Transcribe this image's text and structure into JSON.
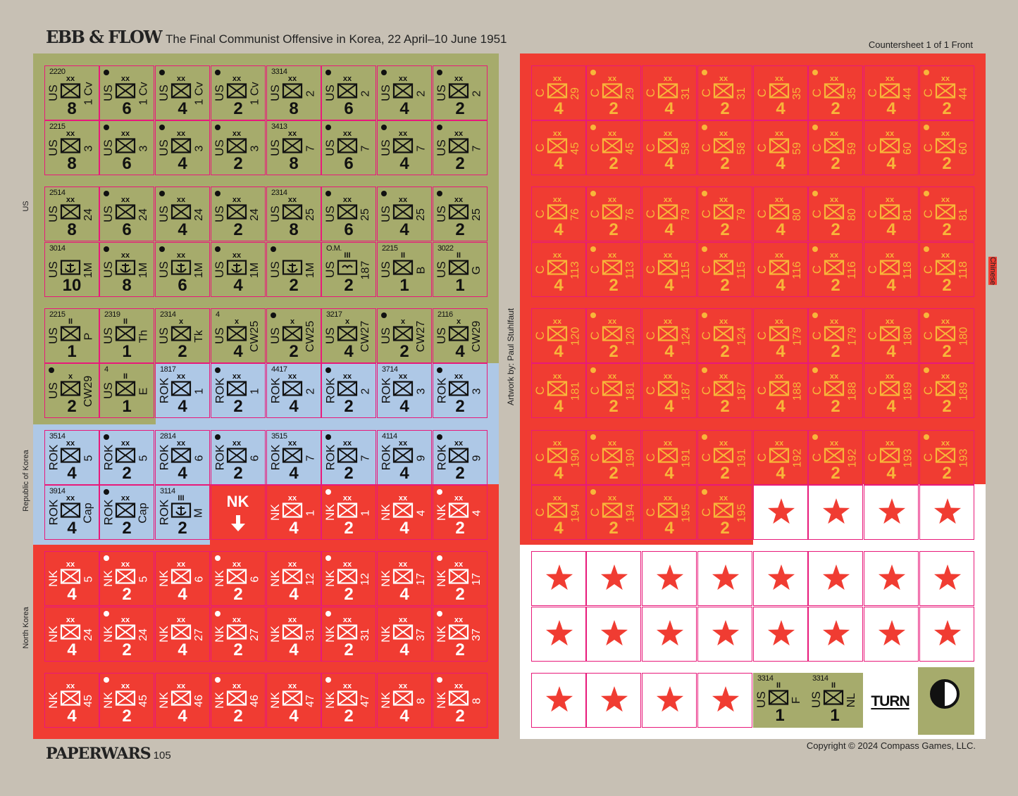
{
  "header": {
    "game_title": "EBB & FLOW",
    "subtitle": "The Final Communist Offensive in Korea, 22 April–10 June 1951",
    "countersheet": "Countersheet 1 of 1 Front"
  },
  "footer": {
    "magazine": "PAPERWARS",
    "issue": "105",
    "copyright": "Copyright © 2024 Compass Games, LLC."
  },
  "side_labels": {
    "us": "US",
    "rok": "Republic of Korea",
    "nk": "North Korea",
    "chinese": "Chinese",
    "artwork": "Artwork by: Paul Stuhlfaut"
  },
  "colors": {
    "us": "#a6ab6c",
    "rok": "#aec8e6",
    "red": "#f03c32",
    "chinese_text": "#f8b63a",
    "border": "#e8197a"
  },
  "left_rows": [
    [
      {
        "n": "US",
        "s": "xx",
        "d": "1 Cv",
        "p": "8",
        "code": "2220",
        "t": "inf"
      },
      {
        "n": "US",
        "s": "xx",
        "d": "1 Cv",
        "p": "6",
        "dot": true,
        "t": "inf"
      },
      {
        "n": "US",
        "s": "xx",
        "d": "1 Cv",
        "p": "4",
        "dot": true,
        "t": "inf"
      },
      {
        "n": "US",
        "s": "xx",
        "d": "1 Cv",
        "p": "2",
        "dot": true,
        "t": "inf"
      },
      {
        "n": "US",
        "s": "xx",
        "d": "2",
        "p": "8",
        "code": "3314",
        "t": "inf"
      },
      {
        "n": "US",
        "s": "xx",
        "d": "2",
        "p": "6",
        "dot": true,
        "t": "inf"
      },
      {
        "n": "US",
        "s": "xx",
        "d": "2",
        "p": "4",
        "dot": true,
        "t": "inf"
      },
      {
        "n": "US",
        "s": "xx",
        "d": "2",
        "p": "2",
        "dot": true,
        "t": "inf"
      }
    ],
    [
      {
        "n": "US",
        "s": "xx",
        "d": "3",
        "p": "8",
        "code": "2215",
        "t": "inf"
      },
      {
        "n": "US",
        "s": "xx",
        "d": "3",
        "p": "6",
        "dot": true,
        "t": "inf"
      },
      {
        "n": "US",
        "s": "xx",
        "d": "3",
        "p": "4",
        "dot": true,
        "t": "inf"
      },
      {
        "n": "US",
        "s": "xx",
        "d": "3",
        "p": "2",
        "dot": true,
        "t": "inf"
      },
      {
        "n": "US",
        "s": "xx",
        "d": "7",
        "p": "8",
        "code": "3413",
        "t": "inf"
      },
      {
        "n": "US",
        "s": "xx",
        "d": "7",
        "p": "6",
        "dot": true,
        "t": "inf"
      },
      {
        "n": "US",
        "s": "xx",
        "d": "7",
        "p": "4",
        "dot": true,
        "t": "inf"
      },
      {
        "n": "US",
        "s": "xx",
        "d": "7",
        "p": "2",
        "dot": true,
        "t": "inf"
      }
    ],
    [
      {
        "n": "US",
        "s": "xx",
        "d": "24",
        "p": "8",
        "code": "2514",
        "t": "inf"
      },
      {
        "n": "US",
        "s": "xx",
        "d": "24",
        "p": "6",
        "dot": true,
        "t": "inf"
      },
      {
        "n": "US",
        "s": "xx",
        "d": "24",
        "p": "4",
        "dot": true,
        "t": "inf"
      },
      {
        "n": "US",
        "s": "xx",
        "d": "24",
        "p": "2",
        "dot": true,
        "t": "inf"
      },
      {
        "n": "US",
        "s": "xx",
        "d": "25",
        "p": "8",
        "code": "2314",
        "t": "inf"
      },
      {
        "n": "US",
        "s": "xx",
        "d": "25",
        "p": "6",
        "dot": true,
        "t": "inf"
      },
      {
        "n": "US",
        "s": "xx",
        "d": "25",
        "p": "4",
        "dot": true,
        "t": "inf"
      },
      {
        "n": "US",
        "s": "xx",
        "d": "25",
        "p": "2",
        "dot": true,
        "t": "inf"
      }
    ],
    [
      {
        "n": "US",
        "s": "",
        "d": "1M",
        "p": "10",
        "code": "3014",
        "t": "mar"
      },
      {
        "n": "US",
        "s": "xx",
        "d": "1M",
        "p": "8",
        "dot": true,
        "t": "mar"
      },
      {
        "n": "US",
        "s": "xx",
        "d": "1M",
        "p": "6",
        "dot": true,
        "t": "mar"
      },
      {
        "n": "US",
        "s": "xx",
        "d": "1M",
        "p": "4",
        "dot": true,
        "t": "mar"
      },
      {
        "n": "US",
        "s": "",
        "d": "1M",
        "p": "2",
        "dot": true,
        "t": "mar"
      },
      {
        "n": "US",
        "s": "III",
        "d": "187",
        "p": "2",
        "code": "O.M.",
        "t": "abn"
      },
      {
        "n": "US",
        "s": "II",
        "d": "B",
        "p": "1",
        "code": "2215",
        "t": "inf"
      },
      {
        "n": "US",
        "s": "II",
        "d": "G",
        "p": "1",
        "code": "3022",
        "t": "inf"
      }
    ],
    [
      {
        "n": "US",
        "s": "II",
        "d": "P",
        "p": "1",
        "code": "2215",
        "t": "inf"
      },
      {
        "n": "US",
        "s": "II",
        "d": "Th",
        "p": "1",
        "code": "2319",
        "t": "inf"
      },
      {
        "n": "US",
        "s": "x",
        "d": "Tk",
        "p": "2",
        "code": "2314",
        "t": "inf"
      },
      {
        "n": "US",
        "s": "x",
        "d": "CW25",
        "p": "4",
        "code": "4",
        "t": "inf"
      },
      {
        "n": "US",
        "s": "x",
        "d": "CW25",
        "p": "2",
        "dot": true,
        "t": "inf"
      },
      {
        "n": "US",
        "s": "x",
        "d": "CW27",
        "p": "4",
        "code": "3217",
        "t": "inf"
      },
      {
        "n": "US",
        "s": "x",
        "d": "CW27",
        "p": "2",
        "dot": true,
        "t": "inf"
      },
      {
        "n": "US",
        "s": "x",
        "d": "CW29",
        "p": "4",
        "code": "2116",
        "t": "inf"
      }
    ],
    [
      {
        "n": "US",
        "s": "x",
        "d": "CW29",
        "p": "2",
        "dot": true,
        "t": "inf"
      },
      {
        "n": "US",
        "s": "II",
        "d": "E",
        "p": "1",
        "code": "4",
        "t": "inf"
      },
      {
        "n": "ROK",
        "s": "xx",
        "d": "1",
        "p": "4",
        "code": "1817",
        "t": "inf",
        "c": "b"
      },
      {
        "n": "ROK",
        "s": "xx",
        "d": "1",
        "p": "2",
        "dot": true,
        "t": "inf",
        "c": "b"
      },
      {
        "n": "ROK",
        "s": "xx",
        "d": "2",
        "p": "4",
        "code": "4417",
        "t": "inf",
        "c": "b"
      },
      {
        "n": "ROK",
        "s": "xx",
        "d": "2",
        "p": "2",
        "dot": true,
        "t": "inf",
        "c": "b"
      },
      {
        "n": "ROK",
        "s": "xx",
        "d": "3",
        "p": "4",
        "code": "3714",
        "t": "inf",
        "c": "b"
      },
      {
        "n": "ROK",
        "s": "xx",
        "d": "3",
        "p": "2",
        "dot": true,
        "t": "inf",
        "c": "b"
      }
    ],
    [
      {
        "n": "ROK",
        "s": "xx",
        "d": "5",
        "p": "4",
        "code": "3514",
        "t": "inf",
        "c": "b"
      },
      {
        "n": "ROK",
        "s": "xx",
        "d": "5",
        "p": "2",
        "dot": true,
        "t": "inf",
        "c": "b"
      },
      {
        "n": "ROK",
        "s": "xx",
        "d": "6",
        "p": "4",
        "code": "2814",
        "t": "inf",
        "c": "b"
      },
      {
        "n": "ROK",
        "s": "xx",
        "d": "6",
        "p": "2",
        "dot": true,
        "t": "inf",
        "c": "b"
      },
      {
        "n": "ROK",
        "s": "xx",
        "d": "7",
        "p": "4",
        "code": "3515",
        "t": "inf",
        "c": "b"
      },
      {
        "n": "ROK",
        "s": "xx",
        "d": "7",
        "p": "2",
        "dot": true,
        "t": "inf",
        "c": "b"
      },
      {
        "n": "ROK",
        "s": "xx",
        "d": "9",
        "p": "4",
        "code": "4114",
        "t": "inf",
        "c": "b"
      },
      {
        "n": "ROK",
        "s": "xx",
        "d": "9",
        "p": "2",
        "dot": true,
        "t": "inf",
        "c": "b"
      }
    ],
    [
      {
        "n": "ROK",
        "s": "xx",
        "d": "Cap",
        "p": "4",
        "code": "3914",
        "t": "inf",
        "c": "b"
      },
      {
        "n": "ROK",
        "s": "xx",
        "d": "Cap",
        "p": "2",
        "dot": true,
        "t": "inf",
        "c": "b"
      },
      {
        "n": "ROK",
        "s": "III",
        "d": "M",
        "p": "2",
        "code": "3114",
        "t": "mar",
        "c": "b"
      },
      {
        "special": "nk",
        "label": "NK",
        "c": "r"
      },
      {
        "n": "NK",
        "s": "xx",
        "d": "1",
        "p": "4",
        "t": "inf",
        "c": "r"
      },
      {
        "n": "NK",
        "s": "xx",
        "d": "1",
        "p": "2",
        "dot": true,
        "t": "inf",
        "c": "r"
      },
      {
        "n": "NK",
        "s": "xx",
        "d": "4",
        "p": "4",
        "t": "inf",
        "c": "r"
      },
      {
        "n": "NK",
        "s": "xx",
        "d": "4",
        "p": "2",
        "dot": true,
        "t": "inf",
        "c": "r"
      }
    ],
    [
      {
        "n": "NK",
        "s": "xx",
        "d": "5",
        "p": "4",
        "t": "inf",
        "c": "r"
      },
      {
        "n": "NK",
        "s": "xx",
        "d": "5",
        "p": "2",
        "dot": true,
        "t": "inf",
        "c": "r"
      },
      {
        "n": "NK",
        "s": "xx",
        "d": "6",
        "p": "4",
        "t": "inf",
        "c": "r"
      },
      {
        "n": "NK",
        "s": "xx",
        "d": "6",
        "p": "2",
        "dot": true,
        "t": "inf",
        "c": "r"
      },
      {
        "n": "NK",
        "s": "xx",
        "d": "12",
        "p": "4",
        "t": "inf",
        "c": "r"
      },
      {
        "n": "NK",
        "s": "xx",
        "d": "12",
        "p": "2",
        "dot": true,
        "t": "inf",
        "c": "r"
      },
      {
        "n": "NK",
        "s": "xx",
        "d": "17",
        "p": "4",
        "t": "inf",
        "c": "r"
      },
      {
        "n": "NK",
        "s": "xx",
        "d": "17",
        "p": "2",
        "dot": true,
        "t": "inf",
        "c": "r"
      }
    ],
    [
      {
        "n": "NK",
        "s": "xx",
        "d": "24",
        "p": "4",
        "t": "inf",
        "c": "r"
      },
      {
        "n": "NK",
        "s": "xx",
        "d": "24",
        "p": "2",
        "dot": true,
        "t": "inf",
        "c": "r"
      },
      {
        "n": "NK",
        "s": "xx",
        "d": "27",
        "p": "4",
        "t": "inf",
        "c": "r"
      },
      {
        "n": "NK",
        "s": "xx",
        "d": "27",
        "p": "2",
        "dot": true,
        "t": "inf",
        "c": "r"
      },
      {
        "n": "NK",
        "s": "xx",
        "d": "31",
        "p": "4",
        "t": "inf",
        "c": "r"
      },
      {
        "n": "NK",
        "s": "xx",
        "d": "31",
        "p": "2",
        "dot": true,
        "t": "inf",
        "c": "r"
      },
      {
        "n": "NK",
        "s": "xx",
        "d": "37",
        "p": "4",
        "t": "inf",
        "c": "r"
      },
      {
        "n": "NK",
        "s": "xx",
        "d": "37",
        "p": "2",
        "dot": true,
        "t": "inf",
        "c": "r"
      }
    ],
    [
      {
        "n": "NK",
        "s": "xx",
        "d": "45",
        "p": "4",
        "t": "inf",
        "c": "r"
      },
      {
        "n": "NK",
        "s": "xx",
        "d": "45",
        "p": "2",
        "dot": true,
        "t": "inf",
        "c": "r"
      },
      {
        "n": "NK",
        "s": "xx",
        "d": "46",
        "p": "4",
        "t": "inf",
        "c": "r"
      },
      {
        "n": "NK",
        "s": "xx",
        "d": "46",
        "p": "2",
        "dot": true,
        "t": "inf",
        "c": "r"
      },
      {
        "n": "NK",
        "s": "xx",
        "d": "47",
        "p": "4",
        "t": "inf",
        "c": "r"
      },
      {
        "n": "NK",
        "s": "xx",
        "d": "47",
        "p": "2",
        "dot": true,
        "t": "inf",
        "c": "r"
      },
      {
        "n": "NK",
        "s": "xx",
        "d": "8",
        "p": "4",
        "t": "inf",
        "c": "r"
      },
      {
        "n": "NK",
        "s": "xx",
        "d": "8",
        "p": "2",
        "dot": true,
        "t": "inf",
        "c": "r"
      }
    ]
  ],
  "right_rows": [
    [
      "29",
      "29",
      "31",
      "31",
      "35",
      "35",
      "44",
      "44"
    ],
    [
      "45",
      "45",
      "58",
      "58",
      "59",
      "59",
      "60",
      "60"
    ],
    [
      "76",
      "76",
      "79",
      "79",
      "80",
      "80",
      "81",
      "81"
    ],
    [
      "113",
      "113",
      "115",
      "115",
      "116",
      "116",
      "118",
      "118"
    ],
    [
      "120",
      "120",
      "124",
      "124",
      "179",
      "179",
      "180",
      "180"
    ],
    [
      "181",
      "181",
      "187",
      "187",
      "188",
      "188",
      "189",
      "189"
    ],
    [
      "190",
      "190",
      "191",
      "191",
      "192",
      "192",
      "193",
      "193"
    ],
    [
      "194",
      "194",
      "195",
      "195"
    ]
  ],
  "chinese_nation": "C",
  "chinese_size": "xx",
  "bottom_special": [
    {
      "n": "US",
      "s": "II",
      "d": "F",
      "p": "1",
      "code": "3314",
      "t": "inf"
    },
    {
      "n": "US",
      "s": "II",
      "d": "NL",
      "p": "1",
      "code": "3314",
      "t": "inf"
    }
  ],
  "turn_label": "TURN"
}
